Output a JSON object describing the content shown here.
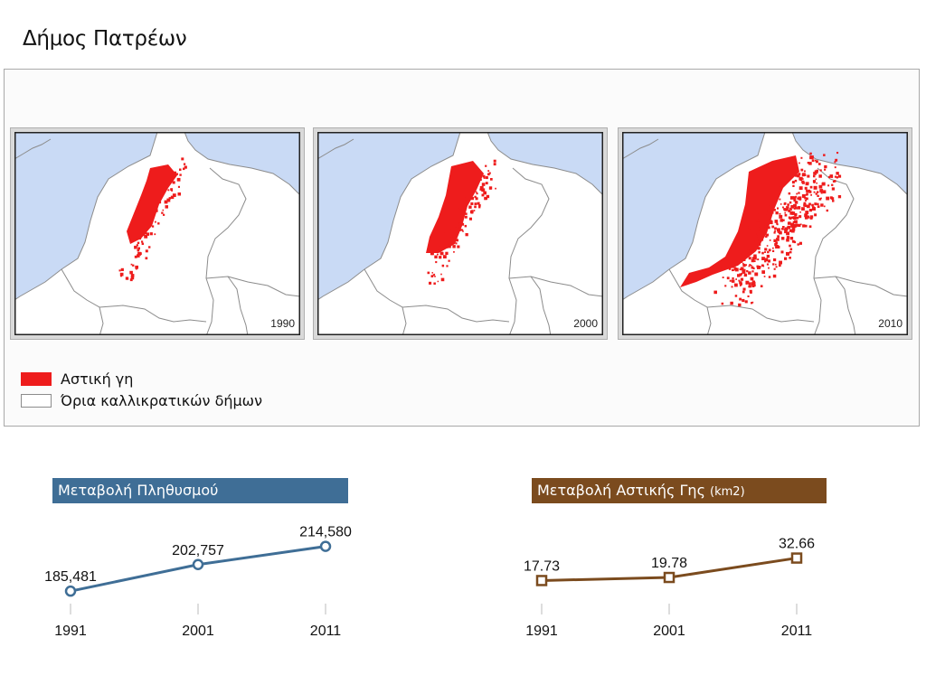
{
  "page": {
    "title": "Δήμος Πατρέων"
  },
  "colors": {
    "sea": "#c9daf5",
    "urban": "#ee1c1c",
    "land": "#ffffff",
    "border": "#8c8c8c",
    "population_line": "#3f6e96",
    "urban_land_line": "#7b4b1e"
  },
  "maps": [
    {
      "year": "1990",
      "density": "low"
    },
    {
      "year": "2000",
      "density": "medium"
    },
    {
      "year": "2010",
      "density": "high"
    }
  ],
  "legend": {
    "items": [
      {
        "label": "Αστική γη",
        "swatch": "red-fill"
      },
      {
        "label": "Όρια καλλικρατικών δήμων",
        "swatch": "outline"
      }
    ]
  },
  "chart_data": [
    {
      "type": "line",
      "title": "Μεταβολή Πληθυσμού",
      "unit": "",
      "color": "#3f6e96",
      "marker": "circle",
      "x": [
        "1991",
        "2001",
        "2011"
      ],
      "values": [
        185481,
        202757,
        214580
      ],
      "labels": [
        "185,481",
        "202,757",
        "214,580"
      ],
      "ylim": [
        175000,
        222000
      ]
    },
    {
      "type": "line",
      "title": "Μεταβολή Αστικής Γης",
      "unit": "(km2)",
      "color": "#7b4b1e",
      "marker": "square",
      "x": [
        "1991",
        "2001",
        "2011"
      ],
      "values": [
        17.73,
        19.78,
        32.66
      ],
      "labels": [
        "17.73",
        "19.78",
        "32.66"
      ],
      "ylim": [
        0,
        48
      ]
    }
  ]
}
